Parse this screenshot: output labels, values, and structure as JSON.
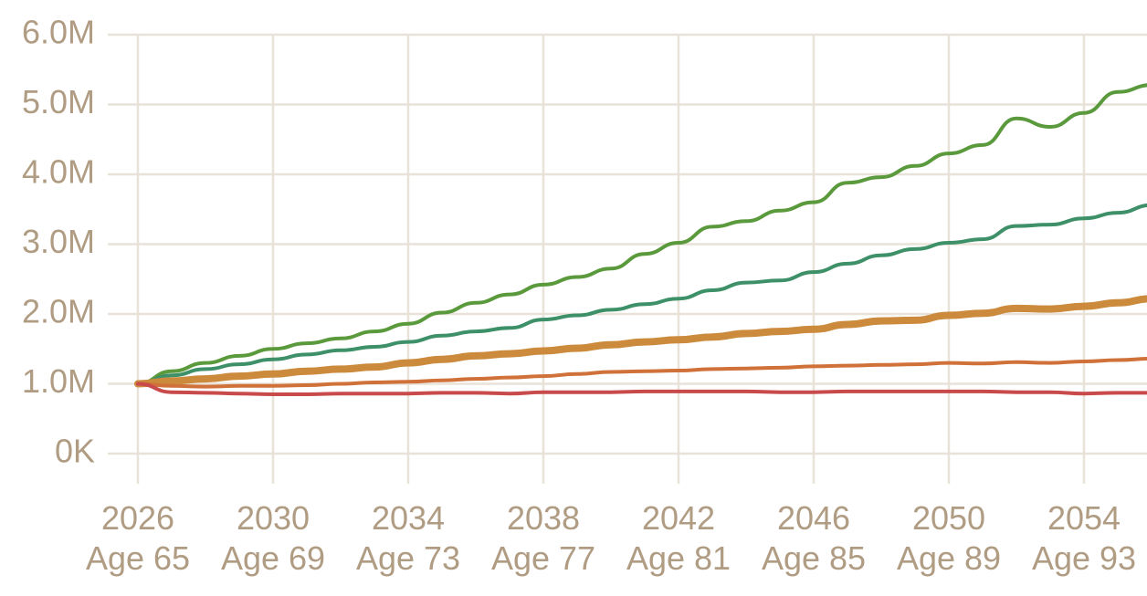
{
  "chart_data": {
    "type": "line",
    "title": "",
    "xlabel": "",
    "ylabel": "",
    "xlim": [
      2026,
      2056
    ],
    "ylim": [
      0,
      6000000
    ],
    "grid": true,
    "y_ticks": [
      {
        "value": 0,
        "label": "0K"
      },
      {
        "value": 1000000,
        "label": "1.0M"
      },
      {
        "value": 2000000,
        "label": "2.0M"
      },
      {
        "value": 3000000,
        "label": "3.0M"
      },
      {
        "value": 4000000,
        "label": "4.0M"
      },
      {
        "value": 5000000,
        "label": "5.0M"
      },
      {
        "value": 6000000,
        "label": "6.0M"
      }
    ],
    "x_ticks": [
      {
        "value": 2026,
        "year": "2026",
        "age": "Age 65"
      },
      {
        "value": 2030,
        "year": "2030",
        "age": "Age 69"
      },
      {
        "value": 2034,
        "year": "2034",
        "age": "Age 73"
      },
      {
        "value": 2038,
        "year": "2038",
        "age": "Age 77"
      },
      {
        "value": 2042,
        "year": "2042",
        "age": "Age 81"
      },
      {
        "value": 2046,
        "year": "2046",
        "age": "Age 85"
      },
      {
        "value": 2050,
        "year": "2050",
        "age": "Age 89"
      },
      {
        "value": 2054,
        "year": "2054",
        "age": "Age 93"
      }
    ],
    "x": [
      2026,
      2027,
      2028,
      2029,
      2030,
      2031,
      2032,
      2033,
      2034,
      2035,
      2036,
      2037,
      2038,
      2039,
      2040,
      2041,
      2042,
      2043,
      2044,
      2045,
      2046,
      2047,
      2048,
      2049,
      2050,
      2051,
      2052,
      2053,
      2054,
      2055,
      2056
    ],
    "series": [
      {
        "color": "#5a9a3c",
        "width": 4,
        "values": [
          1000000,
          1180000,
          1300000,
          1400000,
          1500000,
          1580000,
          1650000,
          1750000,
          1860000,
          2020000,
          2160000,
          2280000,
          2420000,
          2530000,
          2650000,
          2860000,
          3020000,
          3250000,
          3330000,
          3480000,
          3600000,
          3880000,
          3960000,
          4120000,
          4300000,
          4420000,
          4800000,
          4680000,
          4880000,
          5180000,
          5280000
        ]
      },
      {
        "color": "#3d9068",
        "width": 4,
        "values": [
          1000000,
          1120000,
          1210000,
          1280000,
          1350000,
          1420000,
          1480000,
          1530000,
          1600000,
          1690000,
          1750000,
          1800000,
          1920000,
          1980000,
          2060000,
          2140000,
          2220000,
          2340000,
          2450000,
          2480000,
          2600000,
          2720000,
          2840000,
          2930000,
          3020000,
          3070000,
          3260000,
          3280000,
          3370000,
          3450000,
          3560000
        ]
      },
      {
        "color": "#cc8a3d",
        "width": 8,
        "values": [
          1000000,
          1040000,
          1070000,
          1110000,
          1140000,
          1180000,
          1210000,
          1240000,
          1300000,
          1350000,
          1400000,
          1430000,
          1470000,
          1510000,
          1560000,
          1600000,
          1630000,
          1670000,
          1720000,
          1750000,
          1780000,
          1850000,
          1900000,
          1910000,
          1980000,
          2010000,
          2080000,
          2070000,
          2110000,
          2160000,
          2220000
        ]
      },
      {
        "color": "#cf7138",
        "width": 4,
        "values": [
          1000000,
          970000,
          960000,
          970000,
          970000,
          980000,
          1000000,
          1020000,
          1030000,
          1050000,
          1070000,
          1090000,
          1110000,
          1140000,
          1170000,
          1180000,
          1190000,
          1210000,
          1220000,
          1230000,
          1250000,
          1260000,
          1270000,
          1280000,
          1300000,
          1290000,
          1310000,
          1300000,
          1320000,
          1340000,
          1360000
        ]
      },
      {
        "color": "#c84a4a",
        "width": 4,
        "values": [
          1000000,
          880000,
          870000,
          860000,
          850000,
          850000,
          860000,
          860000,
          860000,
          870000,
          870000,
          860000,
          880000,
          880000,
          880000,
          890000,
          890000,
          890000,
          890000,
          880000,
          880000,
          890000,
          890000,
          890000,
          890000,
          890000,
          880000,
          880000,
          860000,
          870000,
          870000
        ]
      }
    ]
  }
}
